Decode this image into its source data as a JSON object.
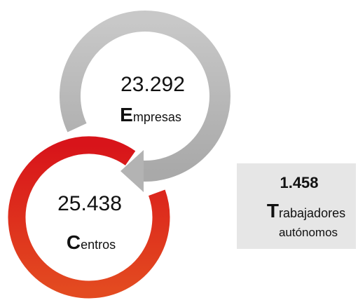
{
  "empresas": {
    "value": "23.292",
    "label": "Empresas"
  },
  "centros": {
    "value": "25.438",
    "label": "Centros"
  },
  "trabajadores": {
    "value": "1.458",
    "label": "Trabajadores",
    "label2": "autónomos"
  }
}
